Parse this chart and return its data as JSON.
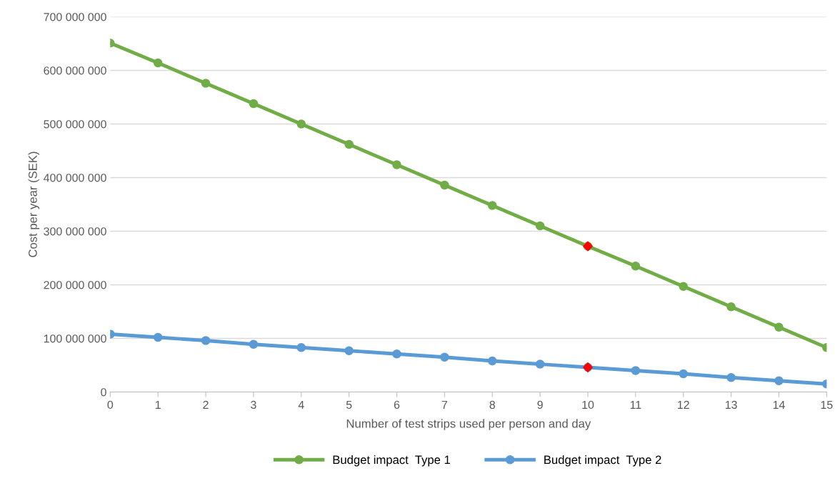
{
  "chart_data": {
    "type": "line",
    "xlabel": "Number of test strips used per person and day",
    "ylabel": "Cost per year (SEK)",
    "x": [
      0,
      1,
      2,
      3,
      4,
      5,
      6,
      7,
      8,
      9,
      10,
      11,
      12,
      13,
      14,
      15
    ],
    "series": [
      {
        "name": "Budget impact  Type 1",
        "color": "#70ad47",
        "values": [
          651000000,
          614000000,
          576000000,
          538000000,
          500000000,
          462000000,
          424000000,
          386000000,
          348000000,
          310000000,
          272000000,
          235000000,
          197000000,
          159000000,
          121000000,
          83000000
        ]
      },
      {
        "name": "Budget impact  Type 2",
        "color": "#5b9bd5",
        "values": [
          108000000,
          102000000,
          96000000,
          89000000,
          83000000,
          77000000,
          71000000,
          65000000,
          58000000,
          52000000,
          46000000,
          40000000,
          34000000,
          27000000,
          21000000,
          15000000
        ]
      },
      {
        "type": "scatter",
        "color": "#ff0000",
        "marker": "diamond",
        "x": [
          10,
          10
        ],
        "values": [
          272000000,
          46000000
        ]
      }
    ],
    "xlim": [
      0,
      15
    ],
    "xticks": [
      0,
      1,
      2,
      3,
      4,
      5,
      6,
      7,
      8,
      9,
      10,
      11,
      12,
      13,
      14,
      15
    ],
    "ylim": [
      0,
      700000000
    ],
    "yticks": [
      0,
      {
        "value": 100000000,
        "label": "100 000 000"
      },
      {
        "value": 200000000,
        "label": "200 000 000"
      },
      {
        "value": 300000000,
        "label": "300 000 000"
      },
      {
        "value": 400000000,
        "label": "400 000 000"
      },
      {
        "value": 500000000,
        "label": "500 000 000"
      },
      {
        "value": 600000000,
        "label": "600 000 000"
      },
      {
        "value": 700000000,
        "label": "700 000 000"
      }
    ],
    "grid": "y",
    "legend": "bottom",
    "marker": "circle",
    "line_style": "solid"
  }
}
